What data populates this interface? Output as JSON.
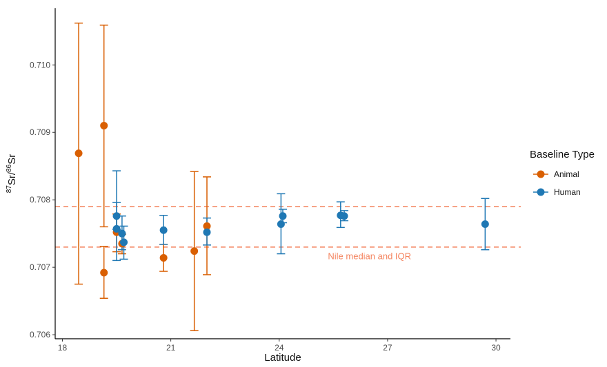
{
  "colors": {
    "animal": "#d95f02",
    "human": "#1f78b4",
    "reference": "#f4845f",
    "axis": "#000000"
  },
  "chart_data": {
    "type": "scatter",
    "title": "",
    "xlabel": "Latitude",
    "ylabel": {
      "sup1": "87",
      "part1": "Sr/",
      "sup2": "86",
      "part2": "Sr"
    },
    "xlim": [
      17.8,
      30.4
    ],
    "ylim": [
      0.70594,
      0.71084
    ],
    "xticks": [
      18,
      21,
      24,
      27,
      30
    ],
    "xtick_labels": [
      "18",
      "21",
      "24",
      "27",
      "30"
    ],
    "yticks": [
      0.706,
      0.707,
      0.708,
      0.709,
      0.71
    ],
    "ytick_labels": [
      "0.706",
      "0.707",
      "0.708",
      "0.709",
      "0.710"
    ],
    "grid": false,
    "legend": {
      "title": "Baseline Type",
      "placement": "right",
      "entries": [
        {
          "key": "animal",
          "label": "Animal"
        },
        {
          "key": "human",
          "label": "Human"
        }
      ]
    },
    "reference_lines": [
      {
        "y": 0.7079,
        "style": "dashed"
      },
      {
        "y": 0.7073,
        "style": "dashed"
      }
    ],
    "annotation": {
      "text": "Nile median and IQR",
      "x": 26.5,
      "y": 0.70717
    },
    "series": [
      {
        "key": "animal",
        "name": "Animal",
        "points": [
          {
            "x": 18.45,
            "y": 0.70869,
            "low": 0.70675,
            "high": 0.71062
          },
          {
            "x": 19.15,
            "y": 0.7091,
            "low": 0.7076,
            "high": 0.71059
          },
          {
            "x": 19.15,
            "y": 0.70692,
            "low": 0.70654,
            "high": 0.70731
          },
          {
            "x": 19.5,
            "y": 0.70752,
            "low": 0.70723,
            "high": 0.70779
          },
          {
            "x": 19.65,
            "y": 0.70735,
            "low": 0.7072,
            "high": 0.70749
          },
          {
            "x": 20.8,
            "y": 0.70714,
            "low": 0.70694,
            "high": 0.70734
          },
          {
            "x": 21.65,
            "y": 0.70724,
            "low": 0.70606,
            "high": 0.70842
          },
          {
            "x": 22.0,
            "y": 0.70761,
            "low": 0.70689,
            "high": 0.70834
          }
        ]
      },
      {
        "key": "human",
        "name": "Human",
        "points": [
          {
            "x": 19.5,
            "y": 0.70776,
            "low": 0.70756,
            "high": 0.70796
          },
          {
            "x": 19.5,
            "y": 0.70757,
            "low": 0.7071,
            "high": 0.70843
          },
          {
            "x": 19.65,
            "y": 0.7075,
            "low": 0.70726,
            "high": 0.70776
          },
          {
            "x": 19.7,
            "y": 0.70737,
            "low": 0.70712,
            "high": 0.70761
          },
          {
            "x": 20.8,
            "y": 0.70755,
            "low": 0.70734,
            "high": 0.70777
          },
          {
            "x": 22.0,
            "y": 0.70752,
            "low": 0.70733,
            "high": 0.70773
          },
          {
            "x": 24.05,
            "y": 0.70764,
            "low": 0.7072,
            "high": 0.70809
          },
          {
            "x": 24.1,
            "y": 0.70776,
            "low": 0.70766,
            "high": 0.70786
          },
          {
            "x": 25.7,
            "y": 0.70777,
            "low": 0.70759,
            "high": 0.70797
          },
          {
            "x": 25.8,
            "y": 0.70776,
            "low": 0.70769,
            "high": 0.70784
          },
          {
            "x": 29.7,
            "y": 0.70764,
            "low": 0.70726,
            "high": 0.70802
          }
        ]
      }
    ]
  }
}
